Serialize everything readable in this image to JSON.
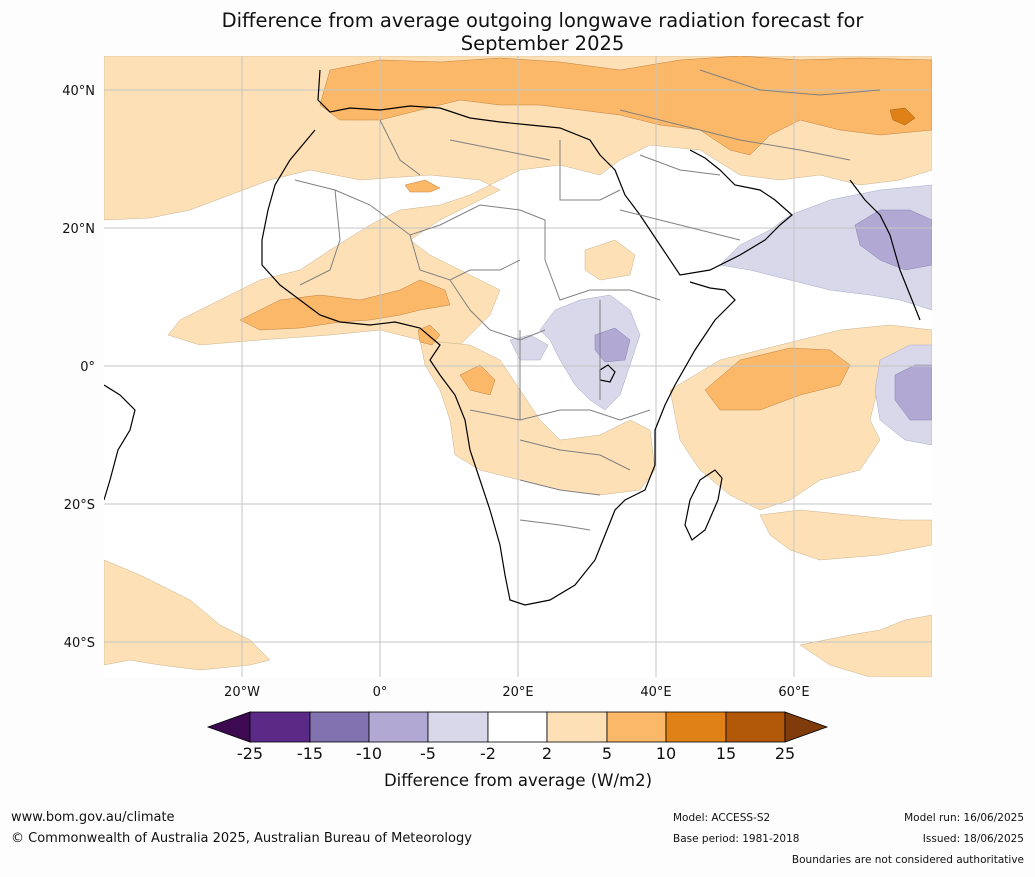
{
  "title": {
    "line1": "Difference from average outgoing longwave radiation forecast for",
    "line2": "September 2025"
  },
  "map": {
    "lat_labels": [
      "40°N",
      "20°N",
      "0°",
      "20°S",
      "40°S"
    ],
    "lon_labels": [
      "20°W",
      "0°",
      "20°E",
      "40°E",
      "60°E"
    ]
  },
  "colorbar": {
    "title": "Difference from average (W/m2)",
    "ticks": [
      "-25",
      "-15",
      "-10",
      "-5",
      "-2",
      "2",
      "5",
      "10",
      "15",
      "25"
    ],
    "colors": [
      "#3d0a52",
      "#5a2a86",
      "#8172b0",
      "#b1a9d3",
      "#d8d8ea",
      "#ffffff",
      "#fde0b6",
      "#fbb868",
      "#df8116",
      "#b15908",
      "#7f3c0a"
    ]
  },
  "footer": {
    "site": "www.bom.gov.au/climate",
    "copyright": "© Commonwealth of Australia 2025, Australian Bureau of Meteorology",
    "model": "Model: ACCESS-S2",
    "base_period": "Base period: 1981-2018",
    "model_run": "Model run: 16/06/2025",
    "issued": "Issued: 18/06/2025",
    "disclaimer": "Boundaries are not considered authoritative"
  }
}
